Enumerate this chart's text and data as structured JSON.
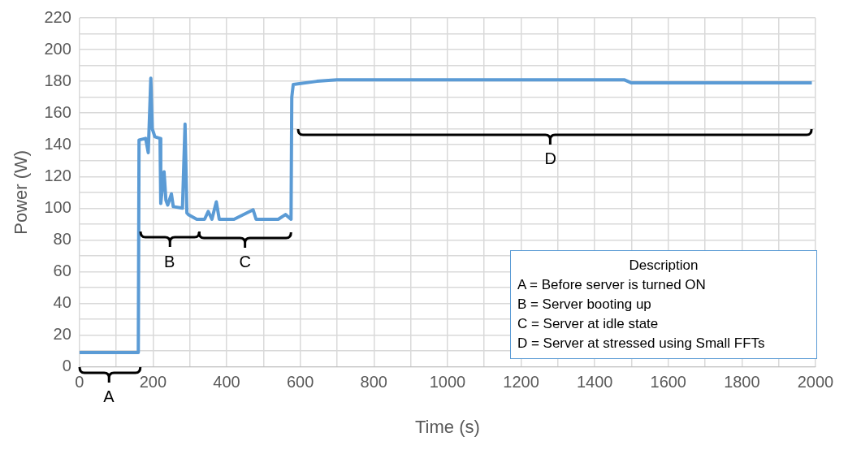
{
  "chart_data": {
    "type": "line",
    "xlabel": "Time (s)",
    "ylabel": "Power (W)",
    "x": [
      0,
      160,
      162,
      180,
      187,
      190,
      194,
      198,
      205,
      219,
      221,
      230,
      235,
      240,
      250,
      255,
      280,
      287,
      292,
      296,
      319,
      340,
      350,
      360,
      372,
      380,
      420,
      472,
      480,
      540,
      560,
      575,
      577,
      581,
      645,
      700,
      900,
      1200,
      1480,
      1500,
      1700,
      1990
    ],
    "series": [
      {
        "color": "#5b9bd5",
        "values": [
          9,
          9,
          143,
          144,
          135,
          155,
          182,
          150,
          145,
          144,
          103,
          123,
          105,
          102,
          109,
          101,
          100,
          153,
          97,
          96,
          93,
          93,
          98,
          93,
          104,
          93,
          93,
          99,
          93,
          93,
          96,
          93,
          170,
          178,
          180,
          181,
          181,
          181,
          181,
          179,
          179,
          179
        ]
      }
    ],
    "xlim": [
      0,
      2000
    ],
    "ylim": [
      0,
      220
    ],
    "xticks": [
      0,
      {
        "value": 100,
        "label": null
      },
      200,
      {
        "value": 300,
        "label": null
      },
      400,
      {
        "value": 500,
        "label": null
      },
      600,
      {
        "value": 700,
        "label": null
      },
      800,
      {
        "value": 900,
        "label": null
      },
      1000,
      {
        "value": 1100,
        "label": null
      },
      1200,
      {
        "value": 1300,
        "label": null
      },
      1400,
      {
        "value": 1500,
        "label": null
      },
      1600,
      {
        "value": 1700,
        "label": null
      },
      1800,
      {
        "value": 1900,
        "label": null
      },
      2000
    ],
    "yticks": [
      0,
      {
        "value": 10,
        "label": null
      },
      20,
      {
        "value": 30,
        "label": null
      },
      40,
      {
        "value": 50,
        "label": null
      },
      60,
      {
        "value": 70,
        "label": null
      },
      80,
      {
        "value": 90,
        "label": null
      },
      100,
      {
        "value": 110,
        "label": null
      },
      120,
      {
        "value": 130,
        "label": null
      },
      140,
      {
        "value": 150,
        "label": null
      },
      160,
      {
        "value": 170,
        "label": null
      },
      180,
      {
        "value": 190,
        "label": null
      },
      200,
      {
        "value": 210,
        "label": null
      },
      220
    ],
    "grid": true,
    "legend": false,
    "marker": "none",
    "line_style": "solid",
    "annotations": [
      "A",
      {
        "text": "B",
        "x": 245,
        "y": 101
      },
      "C",
      "D",
      "Description",
      "A  = Before server is turned ON",
      "B  = Server booting up",
      "C  = Server at idle state",
      "D  = Server at stressed using Small FFTs"
    ]
  }
}
